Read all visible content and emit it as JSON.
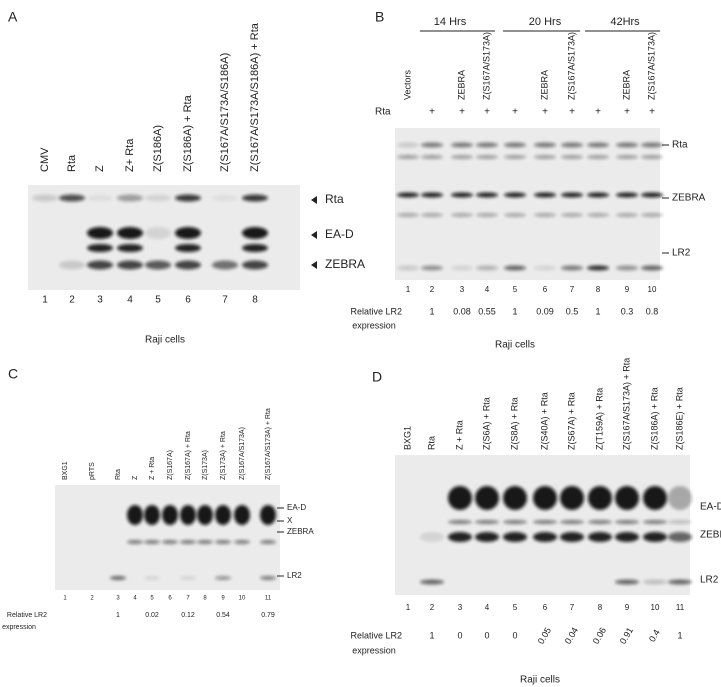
{
  "panels": [
    {
      "label": "A",
      "lanes": [
        {
          "number": "1",
          "label": "CMV"
        },
        {
          "number": "2",
          "label": "Rta"
        },
        {
          "number": "3",
          "label": "Z"
        },
        {
          "number": "4",
          "label": "Z+ Rta"
        },
        {
          "number": "5",
          "label": "Z(S186A)"
        },
        {
          "number": "6",
          "label": "Z(S186A) + Rta"
        },
        {
          "number": "7",
          "label": "Z(S167A/S173A/S186A)"
        },
        {
          "number": "8",
          "label": "Z(S167A/S173A/S186A) + Rta"
        }
      ],
      "markers": [
        "Rta",
        "EA-D",
        "ZEBRA"
      ],
      "caption": "Raji cells"
    },
    {
      "label": "B",
      "timepoints": [
        "14 Hrs",
        "20 Hrs",
        "42Hrs"
      ],
      "rta_row_label": "Rta",
      "lanes": [
        {
          "number": "1",
          "label": "Vectors"
        },
        {
          "number": "2",
          "rta": "+",
          "expression": "1"
        },
        {
          "number": "3",
          "label": "ZEBRA",
          "rta": "+",
          "expression": "0.08"
        },
        {
          "number": "4",
          "label": "Z(S167A/S173A)",
          "rta": "+",
          "expression": "0.55"
        },
        {
          "number": "5",
          "rta": "+",
          "expression": "1"
        },
        {
          "number": "6",
          "label": "ZEBRA",
          "rta": "+",
          "expression": "0.09"
        },
        {
          "number": "7",
          "label": "Z(S167A/S173A)",
          "rta": "+",
          "expression": "0.5"
        },
        {
          "number": "8",
          "rta": "+",
          "expression": "1"
        },
        {
          "number": "9",
          "label": "ZEBRA",
          "rta": "+",
          "expression": "0.3"
        },
        {
          "number": "10",
          "label": "Z(S167A/S173A)",
          "rta": "+",
          "expression": "0.8"
        }
      ],
      "markers": [
        "Rta",
        "ZEBRA",
        "LR2"
      ],
      "expression_label": [
        "Relative  LR2",
        "expression"
      ],
      "caption": "Raji  cells"
    },
    {
      "label": "C",
      "lanes": [
        {
          "number": "1",
          "label": "BXG1"
        },
        {
          "number": "2",
          "label": "pRTS"
        },
        {
          "number": "3",
          "label": "Rta",
          "expression": "1"
        },
        {
          "number": "4",
          "label": "Z"
        },
        {
          "number": "5",
          "label": "Z + Rta",
          "expression": "0.02"
        },
        {
          "number": "6",
          "label": "Z(S167A)"
        },
        {
          "number": "7",
          "label": "Z(S167A) + Rta",
          "expression": "0.12"
        },
        {
          "number": "8",
          "label": "Z(S173A)"
        },
        {
          "number": "9",
          "label": "Z(S173A) + Rta",
          "expression": "0.54"
        },
        {
          "number": "10",
          "label": "Z(S167A/S173A)"
        },
        {
          "number": "11",
          "label": "Z(S167A/S173A) + Rta",
          "expression": "0.79"
        }
      ],
      "markers": [
        "EA-D",
        "X",
        "ZEBRA",
        "LR2"
      ],
      "expression_label": [
        "Relative  LR2",
        "expression"
      ]
    },
    {
      "label": "D",
      "lanes": [
        {
          "number": "1",
          "label": "BXG1"
        },
        {
          "number": "2",
          "label": "Rta",
          "expression": "1"
        },
        {
          "number": "3",
          "label": "Z  + Rta",
          "expression": "0"
        },
        {
          "number": "4",
          "label": "Z(S6A) + Rta",
          "expression": "0"
        },
        {
          "number": "5",
          "label": "Z(S8A) + Rta",
          "expression": "0"
        },
        {
          "number": "6",
          "label": "Z(S40A) + Rta",
          "expression": "0.05"
        },
        {
          "number": "7",
          "label": "Z(S67A) + Rta",
          "expression": "0.04"
        },
        {
          "number": "8",
          "label": "Z(T159A) + Rta",
          "expression": "0.06"
        },
        {
          "number": "9",
          "label": "Z(S167A/S173A) + Rta",
          "expression": "0.91"
        },
        {
          "number": "10",
          "label": "Z(S186A) + Rta",
          "expression": "0.4"
        },
        {
          "number": "11",
          "label": "Z(S186E) + Rta",
          "expression": "1"
        }
      ],
      "markers": [
        "EA-D",
        "ZEBRA",
        "LR2"
      ],
      "expression_label": [
        "Relative  LR2",
        "expression"
      ],
      "caption": "Raji cells"
    }
  ]
}
